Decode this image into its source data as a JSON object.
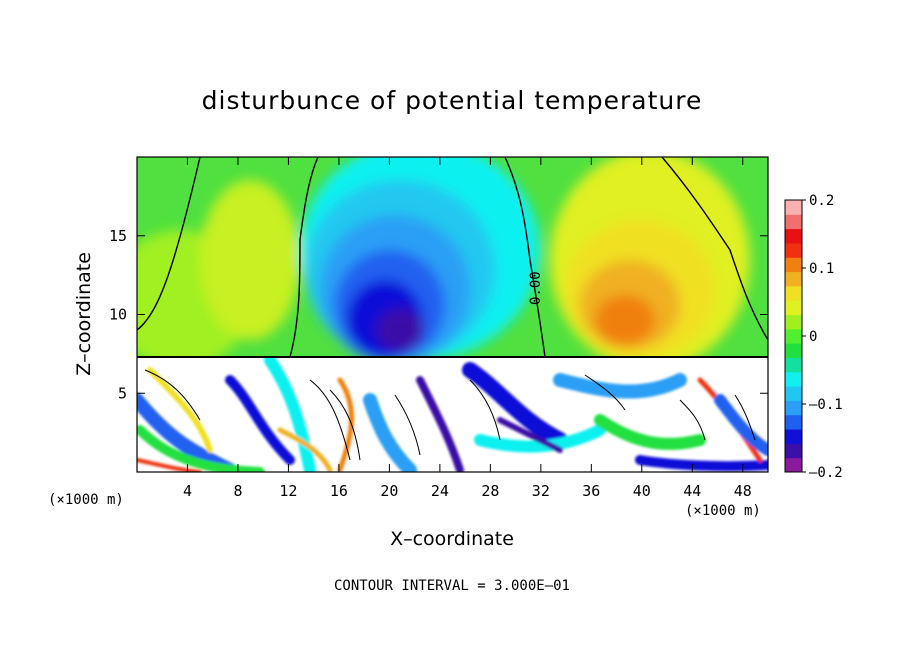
{
  "chart_data": {
    "type": "heatmap",
    "title": "disturbunce of potential temperature",
    "xlabel": "X–coordinate",
    "ylabel": "Z–coordinate",
    "x_unit_left": "(×1000 m)",
    "x_unit_right": "(×1000 m)",
    "footer": "CONTOUR INTERVAL = 3.000E–01",
    "contour_label": "0.00",
    "xlim": [
      0,
      50
    ],
    "ylim": [
      0,
      20
    ],
    "x_ticks": [
      4,
      8,
      12,
      16,
      20,
      24,
      28,
      32,
      36,
      40,
      44,
      48
    ],
    "y_ticks": [
      5,
      10,
      15
    ],
    "colorbar": {
      "range": [
        -0.2,
        0.2
      ],
      "ticks": [
        {
          "value": 0.2,
          "label": "0.2"
        },
        {
          "value": 0.1,
          "label": "0.1"
        },
        {
          "value": 0.0,
          "label": "0"
        },
        {
          "value": -0.1,
          "label": "–0.1"
        },
        {
          "value": -0.2,
          "label": "–0.2"
        }
      ],
      "colors": [
        "#8b1a9e",
        "#3a10a8",
        "#1010d8",
        "#2060f0",
        "#2a9ff5",
        "#20c8f0",
        "#10f0f0",
        "#10e0a0",
        "#20e040",
        "#50f030",
        "#a0f020",
        "#e0f020",
        "#f0e020",
        "#f0b020",
        "#f08010",
        "#f03010",
        "#e81010",
        "#f07070",
        "#f8b0b0"
      ]
    },
    "field_regions": [
      {
        "name": "upper-negative-anomaly",
        "x_range": [
          13,
          31
        ],
        "z_range": [
          7.2,
          20
        ],
        "min_value": -0.2
      },
      {
        "name": "upper-positive-anomaly",
        "x_range": [
          33,
          48
        ],
        "z_range": [
          7.2,
          17
        ],
        "max_value": 0.12
      },
      {
        "name": "lower-turbulent-layer",
        "x_range": [
          0,
          50
        ],
        "z_range": [
          0,
          7.2
        ]
      }
    ]
  }
}
